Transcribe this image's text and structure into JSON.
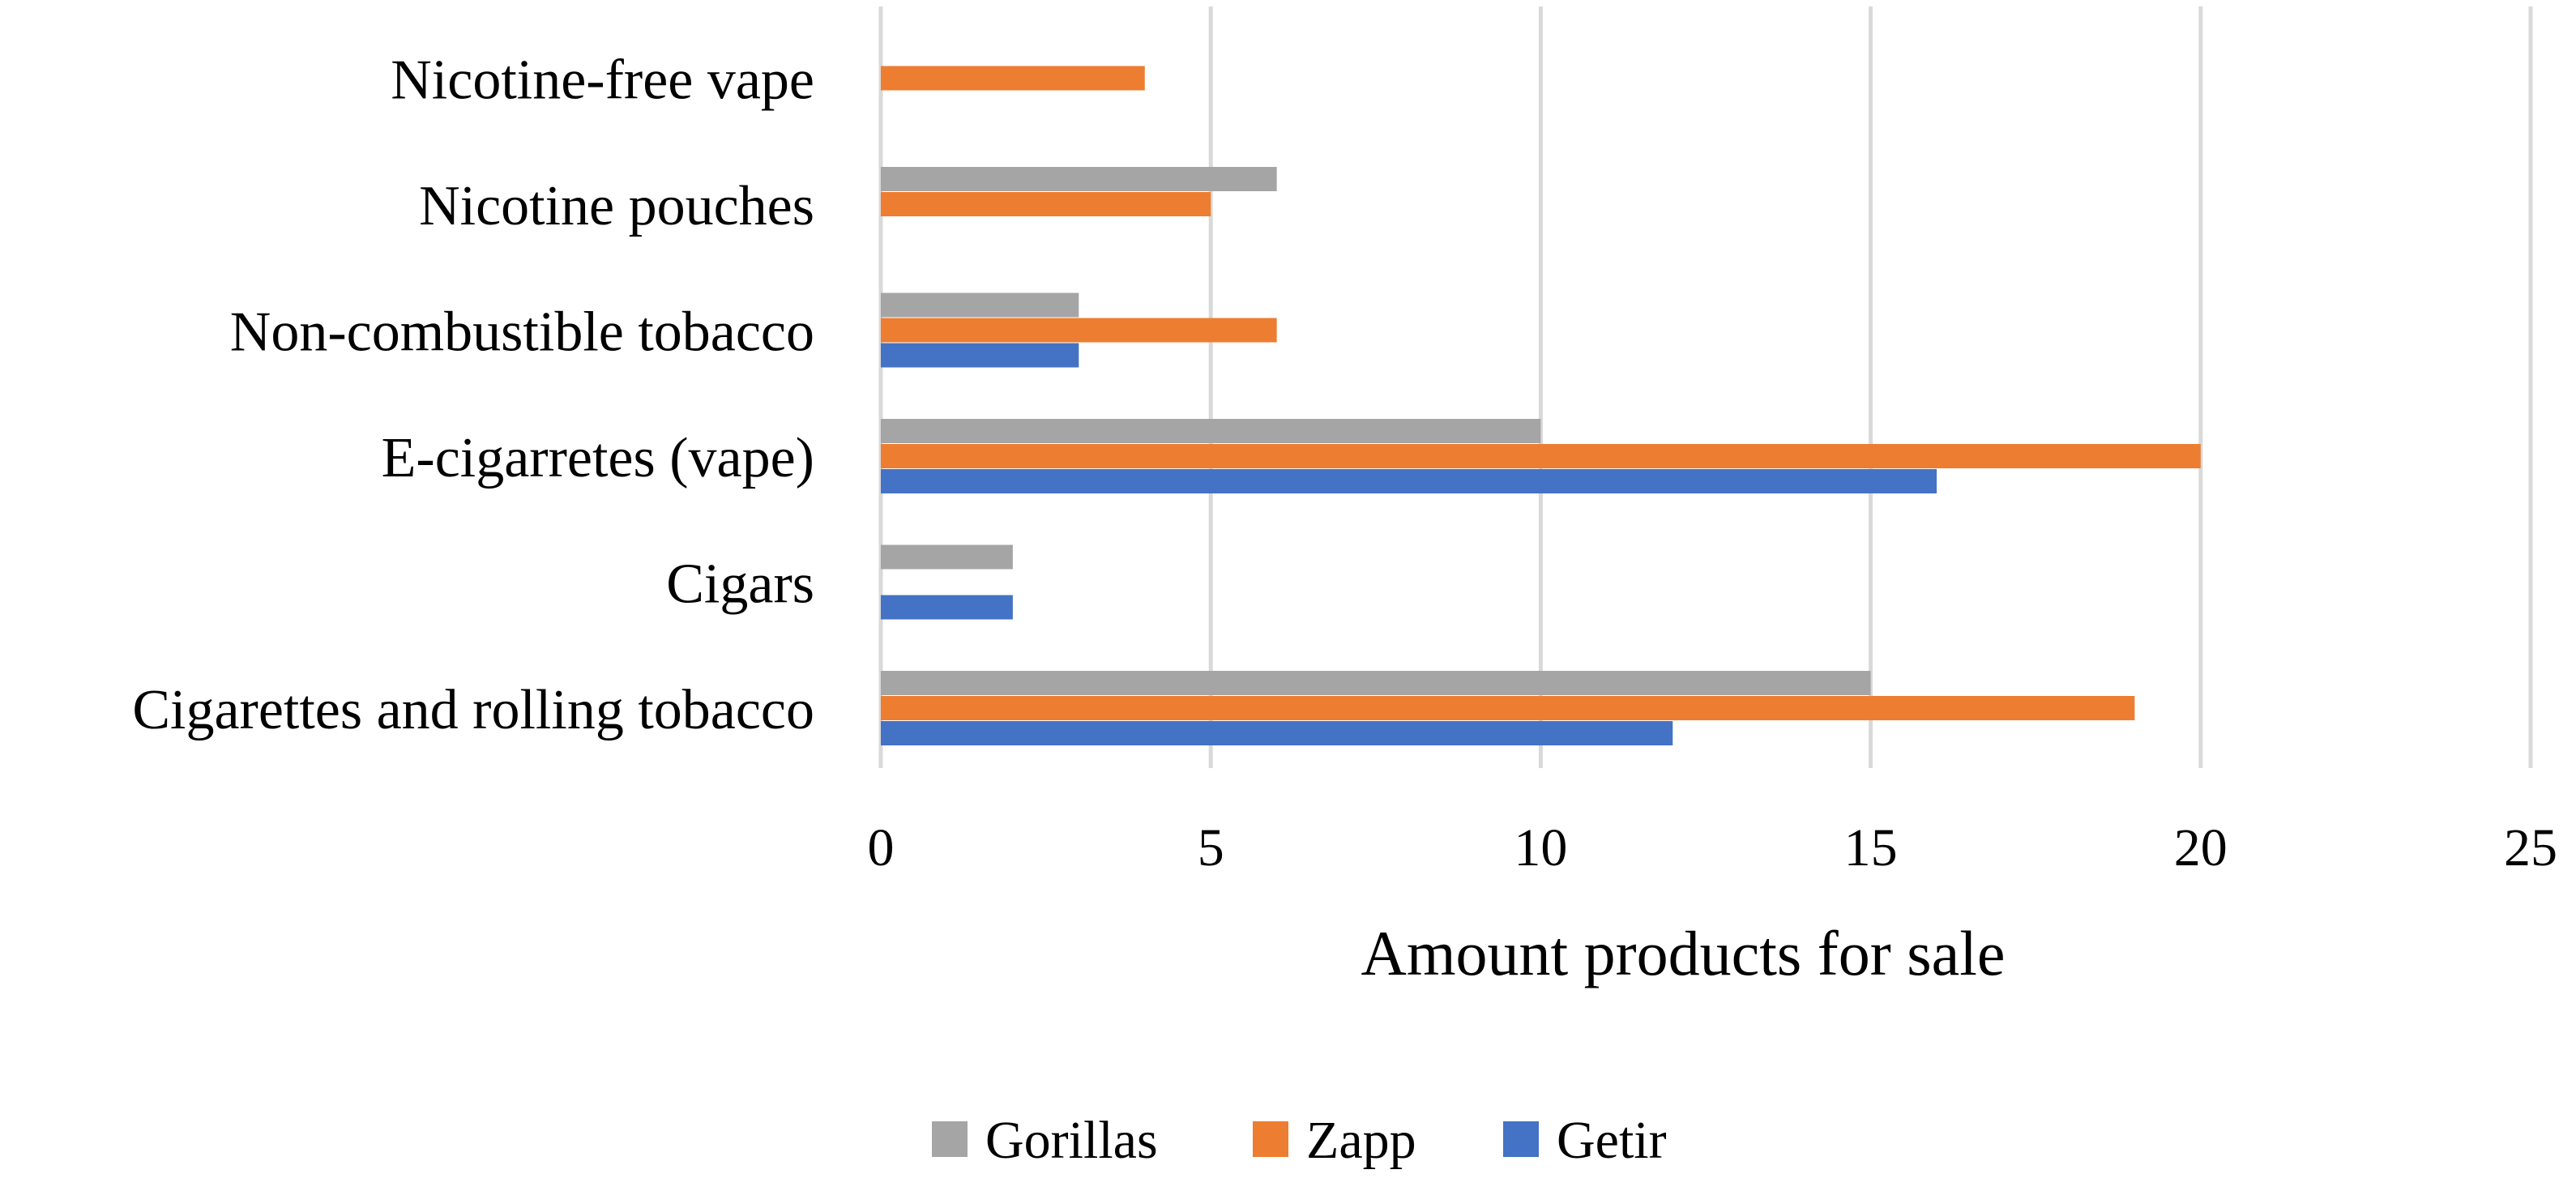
{
  "chart_data": {
    "type": "bar",
    "orientation": "horizontal",
    "categories": [
      "Cigarettes and rolling tobacco",
      "Cigars",
      "E-cigarretes (vape)",
      "Non-combustible tobacco",
      "Nicotine pouches",
      "Nicotine-free vape"
    ],
    "series": [
      {
        "name": "Gorillas",
        "color": "#a5a5a5",
        "values": [
          15,
          2,
          10,
          3,
          6,
          0
        ]
      },
      {
        "name": "Zapp",
        "color": "#ed7d31",
        "values": [
          19,
          0,
          20,
          6,
          5,
          4
        ]
      },
      {
        "name": "Getir",
        "color": "#4472c4",
        "values": [
          12,
          2,
          16,
          3,
          0,
          0
        ]
      }
    ],
    "xlabel": "Amount products for sale",
    "ylabel": "",
    "xlim": [
      0,
      25
    ],
    "xticks": [
      0,
      5,
      10,
      15,
      20,
      25
    ],
    "xtick_labels": [
      "0",
      "5",
      "10",
      "15",
      "20",
      "25"
    ],
    "grid": true,
    "legend_position": "bottom"
  }
}
